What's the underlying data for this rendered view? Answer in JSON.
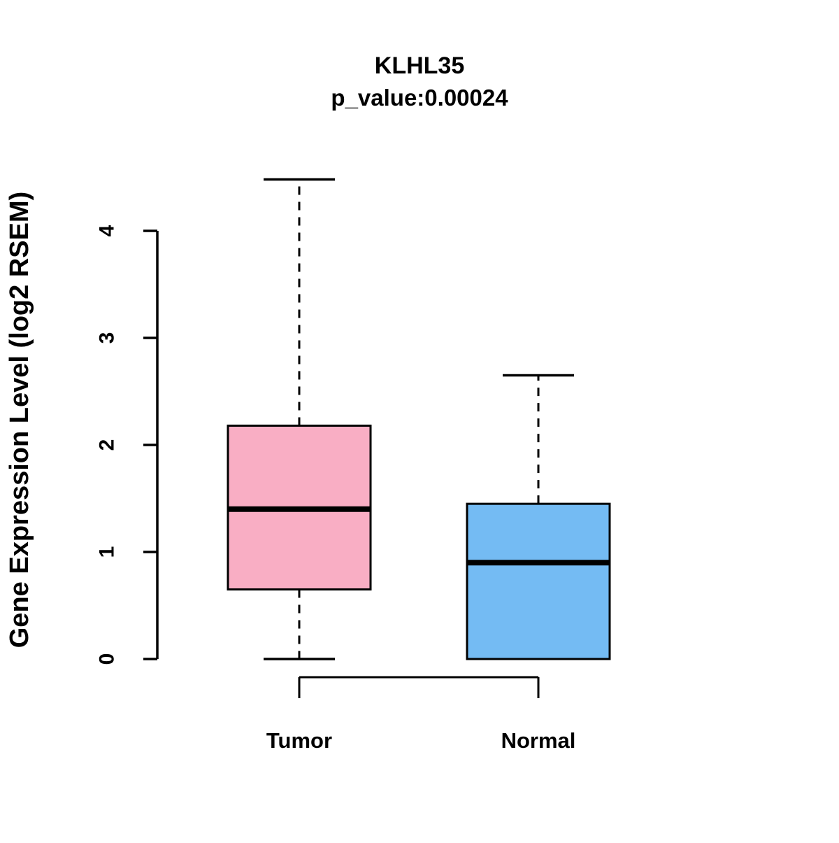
{
  "chart_data": {
    "type": "boxplot",
    "title": "KLHL35",
    "subtitle": "p_value:0.00024",
    "ylabel": "Gene Expression Level (log2 RSEM)",
    "xlabel": "",
    "ylim": [
      0,
      4
    ],
    "yticks": [
      0,
      1,
      2,
      3,
      4
    ],
    "grid": "off",
    "legend": "none",
    "axis_color": "#000000",
    "groups": [
      {
        "name": "Tumor",
        "color": "#F9AEC4",
        "whisker_low": 0.0,
        "q1": 0.65,
        "median": 1.4,
        "q3": 2.18,
        "whisker_high": 4.48
      },
      {
        "name": "Normal",
        "color": "#74BBF3",
        "whisker_low": 0.0,
        "q1": 0.0,
        "median": 0.9,
        "q3": 1.45,
        "whisker_high": 2.65
      }
    ]
  }
}
